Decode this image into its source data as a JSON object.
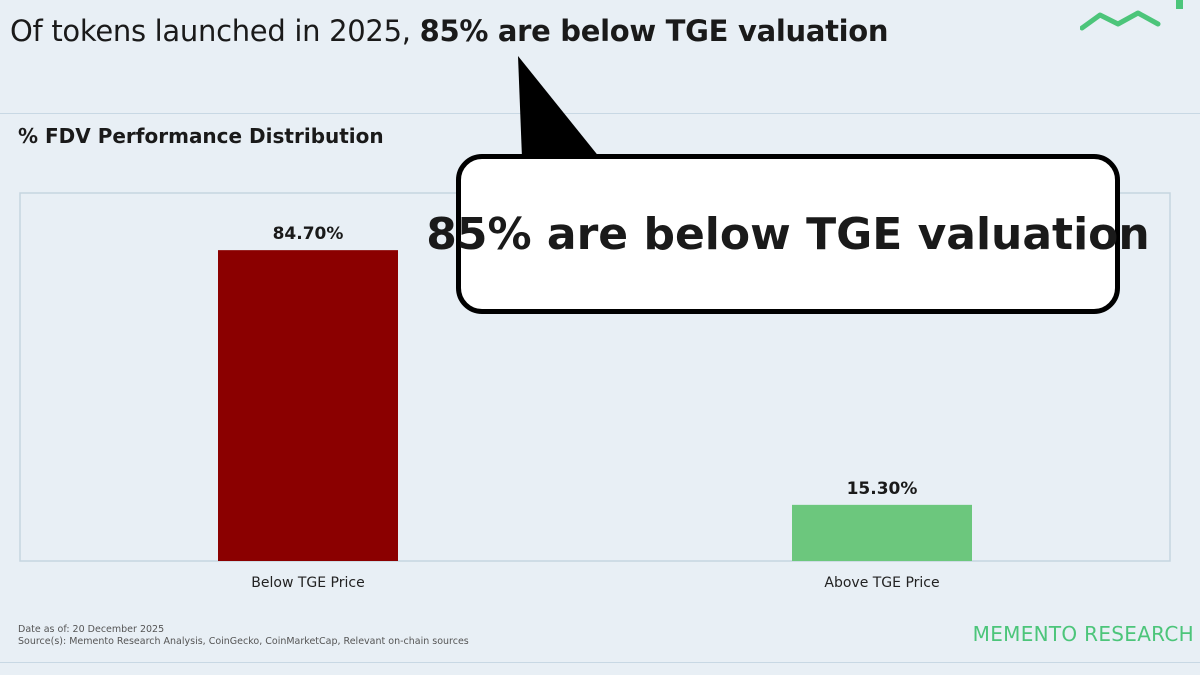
{
  "headline": {
    "prefix": "Of tokens launched in 2025, ",
    "emphasis": "85% are below TGE valuation"
  },
  "callout": {
    "text": "85% are below TGE valuation"
  },
  "footer": {
    "date": "Date as of: 20 December 2025",
    "source": "Source(s): Memento Research Analysis, CoinGecko, CoinMarketCap, Relevant on-chain sources"
  },
  "brand": "MEMENTO RESEARCH",
  "colors": {
    "below_bar": "#8b0000",
    "above_bar": "#6cc77d",
    "brand": "#4cc57a"
  },
  "chart_data": {
    "type": "bar",
    "title": "% FDV Performance Distribution",
    "categories": [
      "Below TGE Price",
      "Above TGE Price"
    ],
    "values": [
      84.7,
      15.3
    ],
    "labels": [
      "84.70%",
      "15.30%"
    ],
    "xlabel": "",
    "ylabel": "",
    "ylim": [
      0,
      100
    ],
    "grid": false,
    "legend": "none"
  }
}
